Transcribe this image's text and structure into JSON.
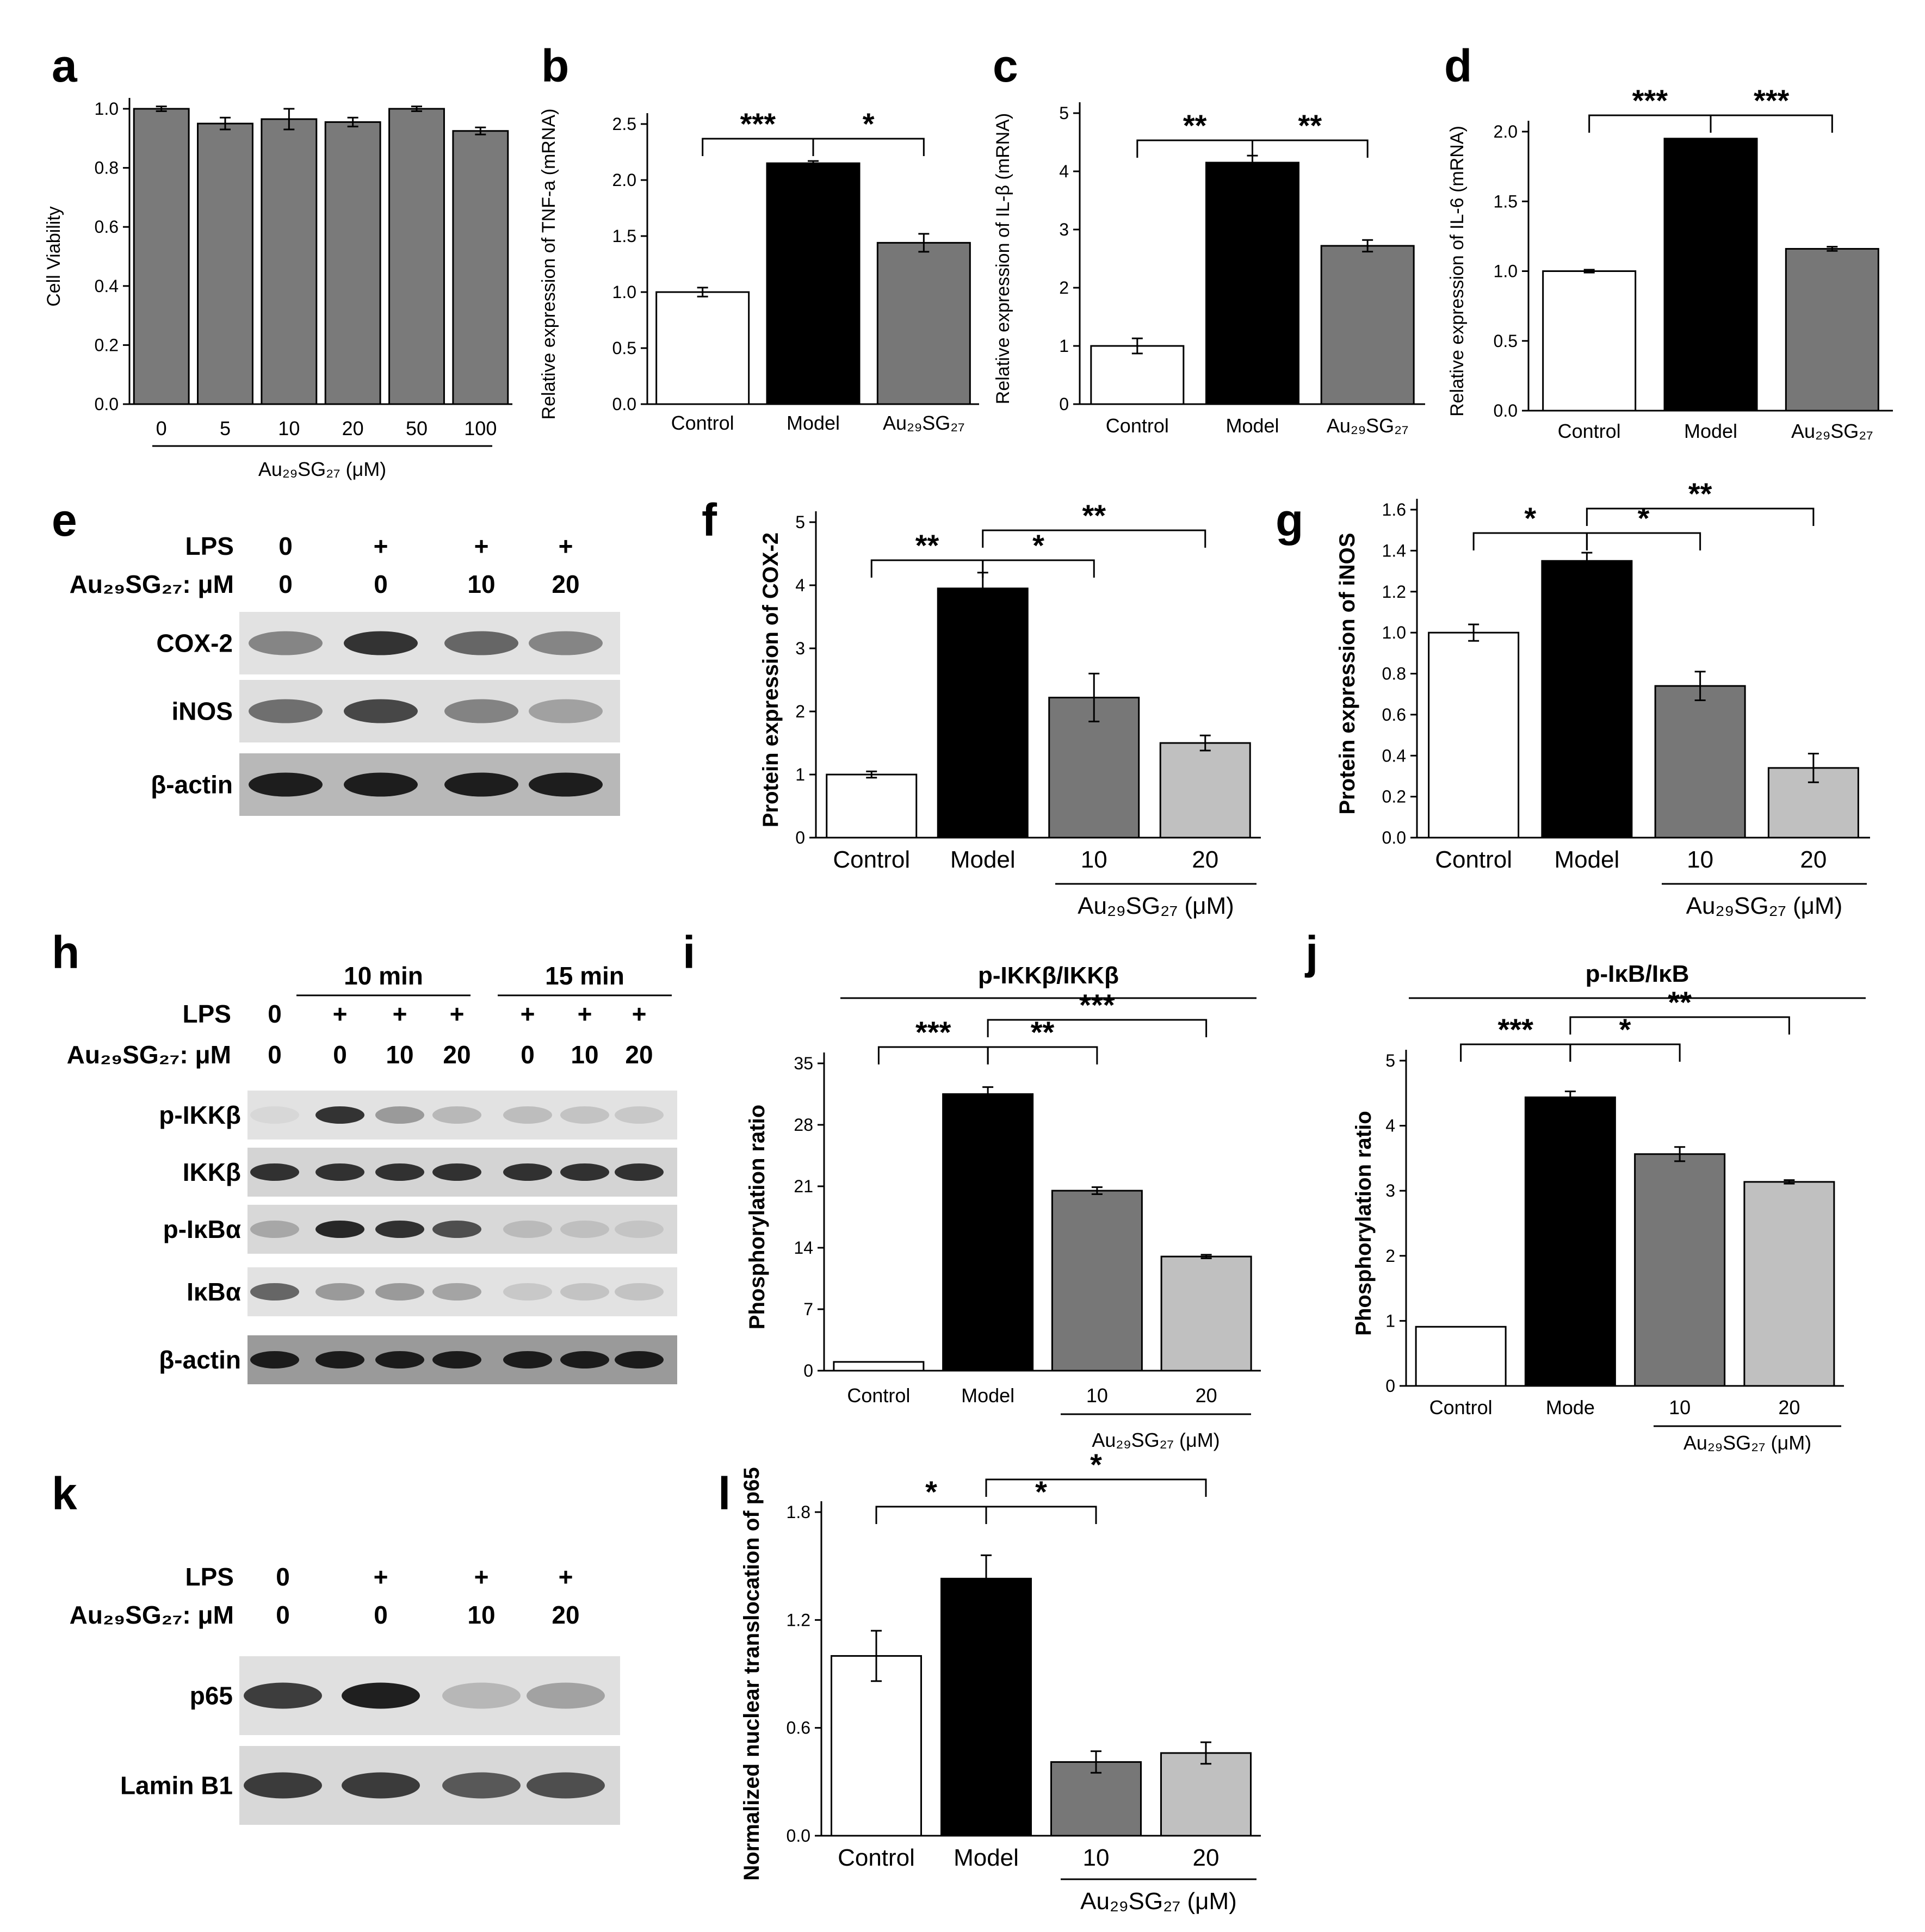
{
  "panels": {
    "a": "a",
    "b": "b",
    "c": "c",
    "d": "d",
    "e": "e",
    "f": "f",
    "g": "g",
    "h": "h",
    "i": "i",
    "j": "j",
    "k": "k",
    "l": "l"
  },
  "colors": {
    "control": "#ffffff",
    "model": "#000000",
    "dose10": "#777777",
    "dose20": "#c0c0c0",
    "viability": "#7a7a7a"
  },
  "blot_e": {
    "row_labels": [
      "LPS",
      "Au₂₉SG₂₇:  μM"
    ],
    "lps": [
      "0",
      "+",
      "+",
      "+"
    ],
    "dose": [
      "0",
      "0",
      "10",
      "20"
    ],
    "bands": [
      "COX-2",
      "iNOS",
      "β-actin"
    ]
  },
  "blot_h": {
    "groups": [
      "10 min",
      "15 min"
    ],
    "row_labels": [
      "LPS",
      "Au₂₉SG₂₇:  μM"
    ],
    "lps": [
      "0",
      "+",
      "+",
      "+",
      "+",
      "+",
      "+"
    ],
    "dose": [
      "0",
      "0",
      "10",
      "20",
      "0",
      "10",
      "20"
    ],
    "bands": [
      "p-IKKβ",
      "IKKβ",
      "p-IκBα",
      "IκBα",
      "β-actin"
    ]
  },
  "blot_k": {
    "row_labels": [
      "LPS",
      "Au₂₉SG₂₇:  μM"
    ],
    "lps": [
      "0",
      "+",
      "+",
      "+"
    ],
    "dose": [
      "0",
      "0",
      "10",
      "20"
    ],
    "bands": [
      "p65",
      "Lamin B1"
    ]
  },
  "chart_data": [
    {
      "panel": "a",
      "type": "bar",
      "categories": [
        "0",
        "5",
        "10",
        "20",
        "50",
        "100"
      ],
      "values": [
        1.0,
        0.95,
        0.965,
        0.955,
        1.0,
        0.925
      ],
      "errors": [
        0.008,
        0.02,
        0.035,
        0.015,
        0.008,
        0.012
      ],
      "ylabel": "Cell Viability",
      "xlabel": "Au₂₉SG₂₇ (μM)",
      "ylim": [
        0,
        1.0
      ],
      "yticks": [
        "0.0",
        "0.2",
        "0.4",
        "0.6",
        "0.8",
        "1.0"
      ]
    },
    {
      "panel": "b",
      "type": "bar",
      "categories": [
        "Control",
        "Model",
        "Au₂₉SG₂₇"
      ],
      "values": [
        1.0,
        2.15,
        1.44
      ],
      "errors": [
        0.04,
        0.02,
        0.08
      ],
      "ylabel": "Relative expression of TNF-a (mRNA)",
      "ylim": [
        0,
        2.5
      ],
      "yticks": [
        "0.0",
        "0.5",
        "1.0",
        "1.5",
        "2.0",
        "2.5"
      ],
      "significance": [
        "***",
        "*"
      ]
    },
    {
      "panel": "c",
      "type": "bar",
      "categories": [
        "Control",
        "Model",
        "Au₂₉SG₂₇"
      ],
      "values": [
        1.0,
        4.15,
        2.72
      ],
      "errors": [
        0.13,
        0.12,
        0.1
      ],
      "ylabel": "Relative expression of IL-β (mRNA)",
      "ylim": [
        0,
        5
      ],
      "yticks": [
        "0",
        "1",
        "2",
        "3",
        "4",
        "5"
      ],
      "significance": [
        "**",
        "**"
      ]
    },
    {
      "panel": "d",
      "type": "bar",
      "categories": [
        "Control",
        "Model",
        "Au₂₉SG₂₇"
      ],
      "values": [
        1.0,
        1.95,
        1.16
      ],
      "errors": [
        0.01,
        0.0,
        0.015
      ],
      "ylabel": "Relative expression of IL-6 (mRNA)",
      "ylim": [
        0,
        2.0
      ],
      "yticks": [
        "0.0",
        "0.5",
        "1.0",
        "1.5",
        "2.0"
      ],
      "significance": [
        "***",
        "***"
      ]
    },
    {
      "panel": "f",
      "type": "bar",
      "categories": [
        "Control",
        "Model",
        "10",
        "20"
      ],
      "values": [
        1.0,
        3.95,
        2.22,
        1.5
      ],
      "errors": [
        0.05,
        0.25,
        0.38,
        0.12
      ],
      "ylabel": "Protein expression of COX-2",
      "xlabel": "Au₂₉SG₂₇  (μM)",
      "ylim": [
        0,
        5
      ],
      "yticks": [
        "0",
        "1",
        "2",
        "3",
        "4",
        "5"
      ],
      "significance": [
        "**",
        "*",
        "**"
      ]
    },
    {
      "panel": "g",
      "type": "bar",
      "categories": [
        "Control",
        "Model",
        "10",
        "20"
      ],
      "values": [
        1.0,
        1.35,
        0.74,
        0.34
      ],
      "errors": [
        0.04,
        0.04,
        0.07,
        0.07
      ],
      "ylabel": "Protein expression of iNOS",
      "xlabel": "Au₂₉SG₂₇  (μM)",
      "ylim": [
        0,
        1.6
      ],
      "yticks": [
        "0.0",
        "0.2",
        "0.4",
        "0.6",
        "0.8",
        "1.0",
        "1.2",
        "1.4",
        "1.6"
      ],
      "significance": [
        "*",
        "*",
        "**"
      ]
    },
    {
      "panel": "i",
      "type": "bar",
      "title": "p-IKKβ/IKKβ",
      "categories": [
        "Control",
        "Model",
        "10",
        "20"
      ],
      "values": [
        1.0,
        31.5,
        20.5,
        13.0
      ],
      "errors": [
        0,
        0.8,
        0.4,
        0.2
      ],
      "ylabel": "Phosphorylation ratio",
      "xlabel": "Au₂₉SG₂₇  (μM)",
      "ylim": [
        0,
        35
      ],
      "yticks": [
        "0",
        "7",
        "14",
        "21",
        "28",
        "35"
      ],
      "significance": [
        "***",
        "**",
        "***"
      ]
    },
    {
      "panel": "j",
      "type": "bar",
      "title": "p-IκB/IκB",
      "categories": [
        "Control",
        "Mode",
        "10",
        "20"
      ],
      "values": [
        1.0,
        4.88,
        3.92,
        3.45
      ],
      "errors": [
        0,
        0.1,
        0.12,
        0.03
      ],
      "ylabel": "Phosphorylation ratio",
      "xlabel": "Au₂₉SG₂₇  (μM)",
      "ylim": [
        0,
        5.5
      ],
      "yticks": [
        "0",
        "1",
        "2",
        "3",
        "4",
        "5"
      ],
      "significance": [
        "***",
        "*",
        "**"
      ]
    },
    {
      "panel": "l",
      "type": "bar",
      "categories": [
        "Control",
        "Model",
        "10",
        "20"
      ],
      "values": [
        1.0,
        1.43,
        0.41,
        0.46
      ],
      "errors": [
        0.14,
        0.13,
        0.06,
        0.06
      ],
      "ylabel": "Normalized nuclear translocation of p65",
      "xlabel": "Au₂₉SG₂₇  (μM)",
      "ylim": [
        0,
        1.8
      ],
      "yticks": [
        "0.0",
        "0.6",
        "1.2",
        "1.8"
      ],
      "significance": [
        "*",
        "*",
        "*"
      ]
    }
  ]
}
